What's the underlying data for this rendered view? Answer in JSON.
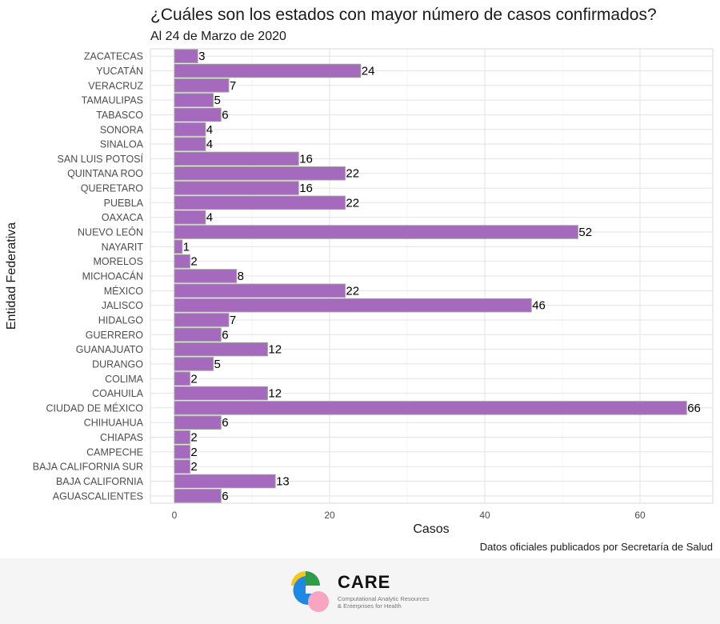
{
  "chart_data": {
    "type": "bar",
    "orientation": "horizontal",
    "title": "¿Cuáles son los estados con mayor número de casos confirmados?",
    "subtitle": "Al 24 de Marzo de 2020",
    "xlabel": "Casos",
    "ylabel": "Entidad Federativa",
    "xlim": [
      0,
      69
    ],
    "xticks": [
      0,
      20,
      40,
      60
    ],
    "grid": true,
    "bar_color": "#a569bd",
    "bar_edge_color": "#9e9e9e",
    "categories": [
      "ZACATECAS",
      "YUCATÁN",
      "VERACRUZ",
      "TAMAULIPAS",
      "TABASCO",
      "SONORA",
      "SINALOA",
      "SAN LUIS POTOSÍ",
      "QUINTANA ROO",
      "QUERETARO",
      "PUEBLA",
      "OAXACA",
      "NUEVO LEÓN",
      "NAYARIT",
      "MORELOS",
      "MICHOACÁN",
      "MÉXICO",
      "JALISCO",
      "HIDALGO",
      "GUERRERO",
      "GUANAJUATO",
      "DURANGO",
      "COLIMA",
      "COAHUILA",
      "CIUDAD DE MÉXICO",
      "CHIHUAHUA",
      "CHIAPAS",
      "CAMPECHE",
      "BAJA CALIFORNIA SUR",
      "BAJA CALIFORNIA",
      "AGUASCALIENTES"
    ],
    "values": [
      3,
      24,
      7,
      5,
      6,
      4,
      4,
      16,
      22,
      16,
      22,
      4,
      52,
      1,
      2,
      8,
      22,
      46,
      7,
      6,
      12,
      5,
      2,
      12,
      66,
      6,
      2,
      2,
      2,
      13,
      6
    ]
  },
  "caption": "Datos oficiales publicados por Secretaría de Salud",
  "footer": {
    "logo_name": "CARE",
    "logo_tagline_1": "Computational Analytic Resources",
    "logo_tagline_2": "& Enterprises for Health"
  }
}
